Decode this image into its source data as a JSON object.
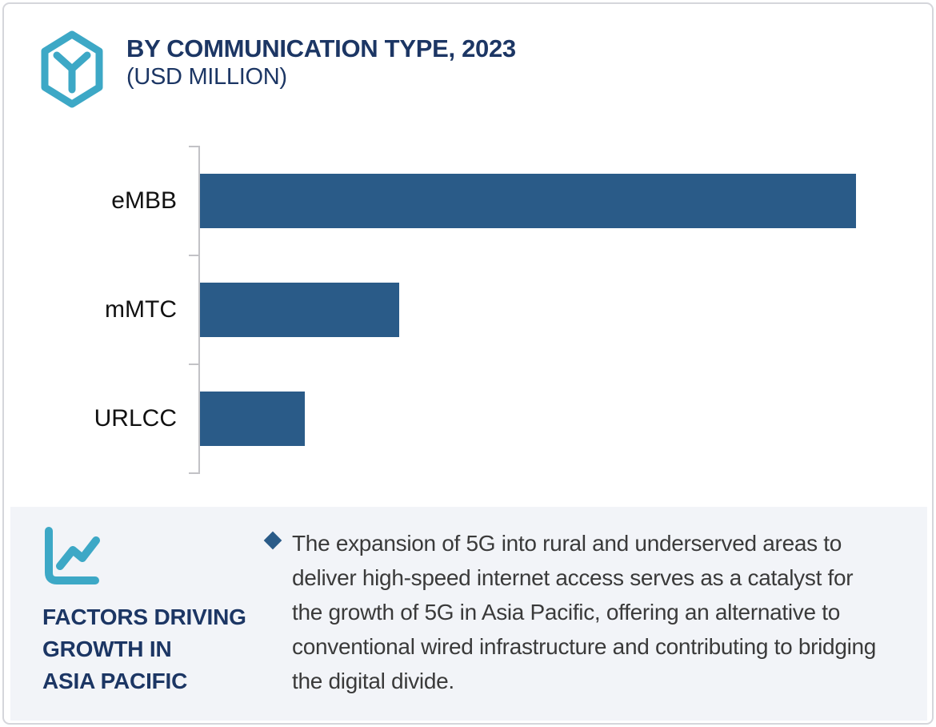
{
  "header": {
    "title_line1": "BY COMMUNICATION TYPE, 2023",
    "title_line2": "(USD MILLION)",
    "icon": "hexagon-cube-icon"
  },
  "chart_data": {
    "type": "bar",
    "orientation": "horizontal",
    "title": "BY COMMUNICATION TYPE, 2023 (USD MILLION)",
    "xlabel": "",
    "ylabel": "",
    "categories": [
      "eMBB",
      "mMTC",
      "URLCC"
    ],
    "values_relative_pct_of_max": [
      100,
      30.4,
      16
    ],
    "value_labels_shown": false,
    "axis_tick_labels_shown": false,
    "grid": false,
    "legend": false,
    "bar_color": "#2a5b88"
  },
  "factors_panel": {
    "icon": "line-chart-icon",
    "heading_lines": [
      "FACTORS DRIVING",
      "GROWTH IN",
      "ASIA PACIFIC"
    ],
    "bullet_marker": "diamond",
    "bullet_text": "The expansion of 5G into rural and underserved areas to deliver high-speed internet access serves as a catalyst for the growth of 5G in Asia Pacific, offering an alternative to conventional wired infrastructure and contributing to bridging the digital divide."
  },
  "colors": {
    "bar_blue": "#2a5b88",
    "navy_text": "#1c3664",
    "teal_icon": "#3da8c6",
    "panel_bg": "#f2f4f8",
    "axis_gray": "#c2c2c6",
    "body_text": "#3a3a3a",
    "card_border": "#d5d6db"
  }
}
